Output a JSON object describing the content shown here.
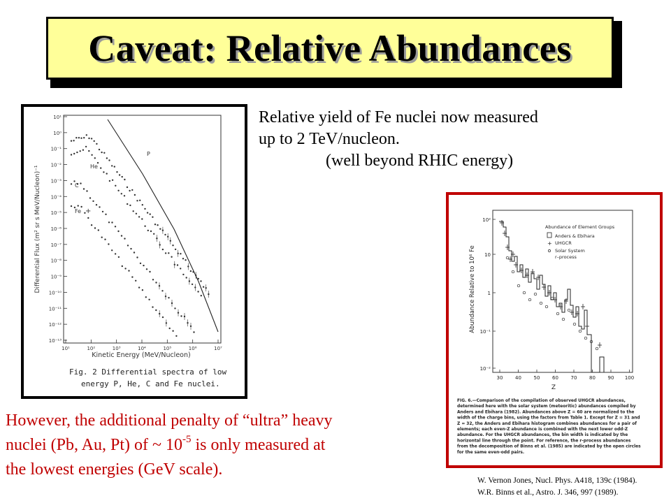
{
  "slide": {
    "title": "Caveat:  Relative Abundances",
    "description": {
      "line1": "Relative yield of Fe nuclei now measured",
      "line2": "up to 2 TeV/nucleon.",
      "line3": "(well beyond RHIC energy)"
    },
    "penalty": {
      "line1": "However, the additional penalty of “ultra” heavy",
      "line2_part1": "nuclei (Pb, Au, Pt) of ~ 10",
      "line2_sup": "-5",
      "line2_part2": " is only measured  at",
      "line3": "the lowest energies (GeV scale)."
    },
    "references": {
      "ref1": "W. Vernon Jones, Nucl. Phys. A418, 139c (1984).",
      "ref2": "W.R. Binns et al., Astro. J. 346, 997 (1989)."
    }
  },
  "left_figure": {
    "yticks": [
      "10¹",
      "10⁰",
      "10⁻¹",
      "10⁻²",
      "10⁻³",
      "10⁻⁴",
      "10⁻⁵",
      "10⁻⁶",
      "10⁻⁷",
      "10⁻⁸",
      "10⁻⁹",
      "10⁻¹⁰",
      "10⁻¹¹",
      "10⁻¹²",
      "10⁻¹³"
    ],
    "xticks": [
      "10¹",
      "10²",
      "10³",
      "10⁴",
      "10⁵",
      "10⁶",
      "10⁷"
    ],
    "ylabel": "Differential Flux (m² sr s MeV/Nucleon)⁻¹",
    "xlabel": "Kinetic Energy (MeV/Nucleon)",
    "series_labels": [
      "P",
      "He",
      "C",
      "Fe"
    ],
    "caption_line1": "Fig. 2  Differential spectra of low",
    "caption_line2": "energy P, He, C and Fe nuclei."
  },
  "right_figure": {
    "yticks": [
      "10²",
      "10",
      "1",
      "10⁻¹",
      "10⁻²"
    ],
    "xticks": [
      "30",
      "40",
      "50",
      "60",
      "70",
      "80",
      "90",
      "100"
    ],
    "ylabel": "Abundance Relative to 10⁶ Fe",
    "xlabel": "Z",
    "legend_title": "Abundance of Element Groups",
    "legend_items": [
      "Anders & Ebihara",
      "UHGCR",
      "Solar System",
      "r–process"
    ],
    "caption": [
      "FIG. 6.—Comparison of the compilation of observed UHGCR abundances,",
      "determined here with the solar system (meteoritic) abundances compiled by",
      "Anders and Ebihara (1982). Abundances above Z = 60 are normalized to the",
      "width of the charge bins, using the factors from Table 1. Except for Z = 31 and",
      "Z = 32, the Anders and Ebihara histogram combines abundances for a pair of",
      "elements; each even-Z abundance is combined with the next lower odd-Z",
      "abundance. For the UHGCR abundances, the bin width is indicated by the",
      "horizontal line through the point. For reference, the r-process abundances",
      "from the decomposition of Binns et al. (1985) are indicated by the open circles",
      "for the same even-odd pairs."
    ]
  }
}
